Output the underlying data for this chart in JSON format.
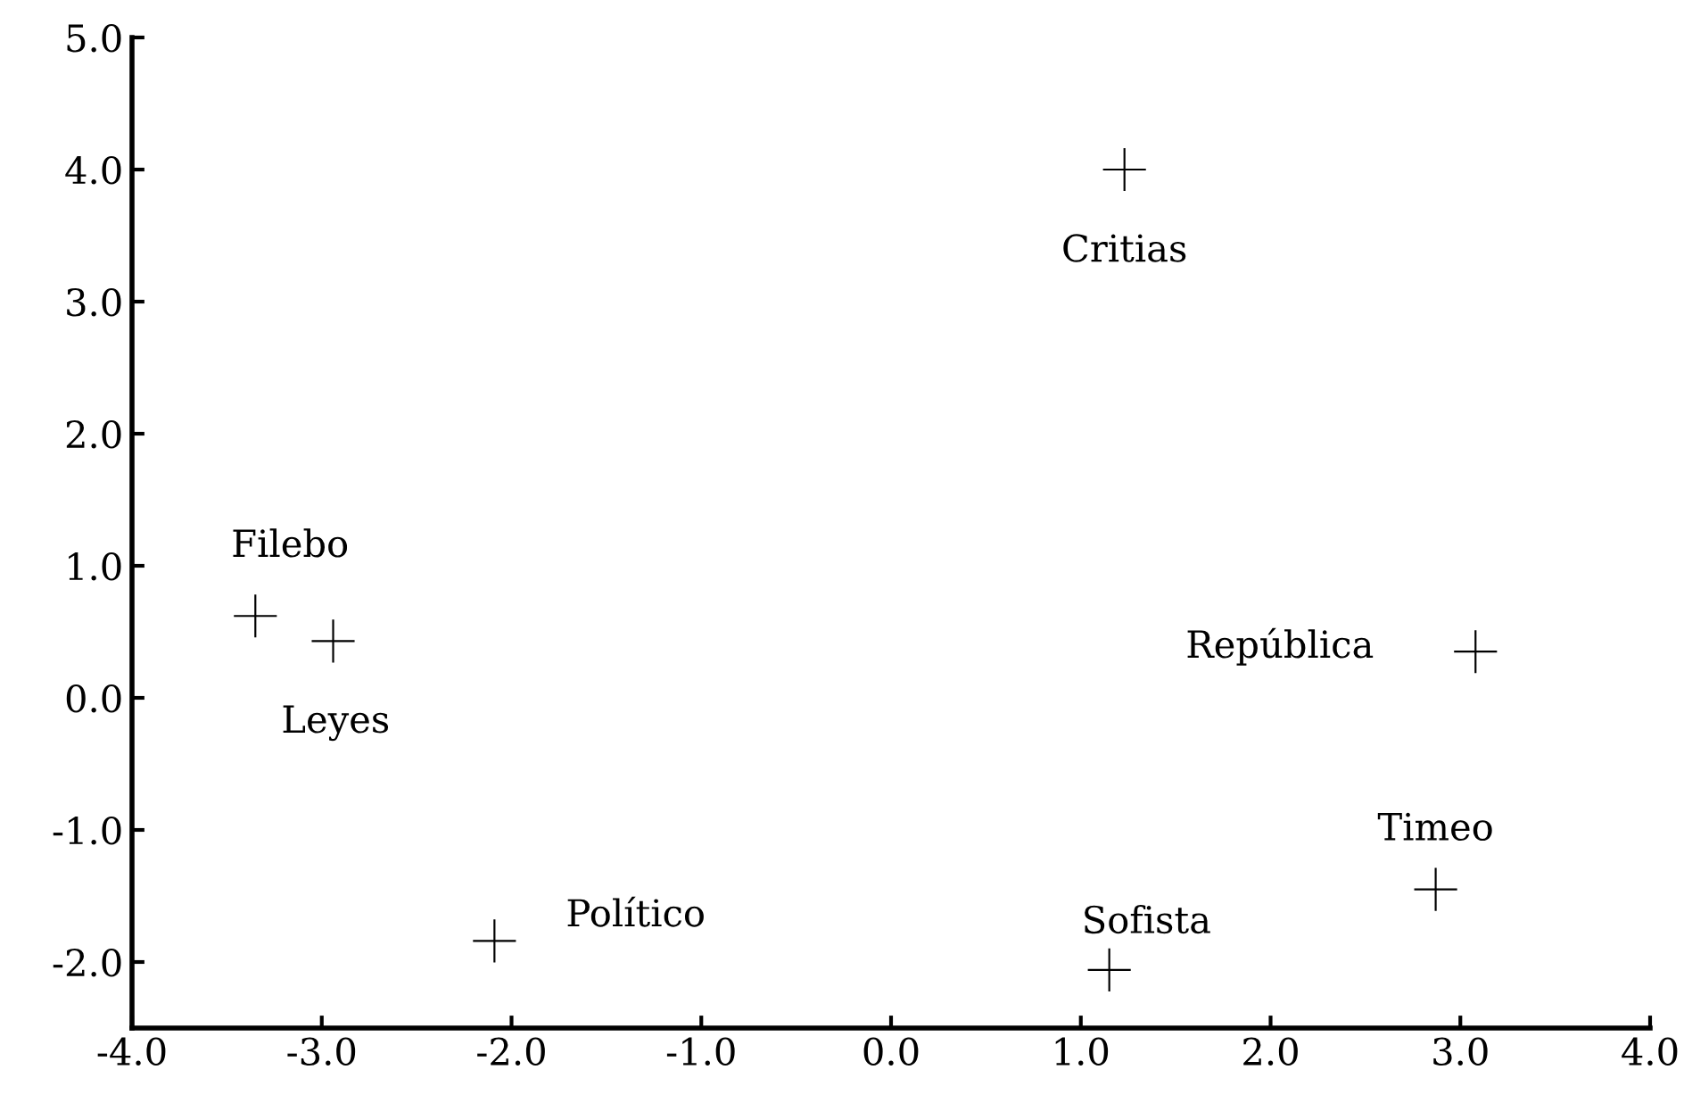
{
  "chart_data": {
    "type": "scatter",
    "marker": "cross",
    "grid": false,
    "legend": false,
    "series": [
      {
        "color": "#000000",
        "x": [
          1.23,
          -3.35,
          -2.94,
          3.08,
          2.87,
          1.15,
          -2.09
        ],
        "values": [
          4.0,
          0.62,
          0.43,
          0.35,
          -1.45,
          -2.06,
          -1.84
        ]
      }
    ],
    "annotations": [
      {
        "text": "Critias",
        "x": 1.23,
        "y": 4.0
      },
      {
        "text": "Filebo",
        "x": -3.35,
        "y": 0.62
      },
      {
        "text": "Leyes",
        "x": -2.94,
        "y": 0.43
      },
      {
        "text": "República",
        "x": 3.08,
        "y": 0.35
      },
      {
        "text": "Timeo",
        "x": 2.87,
        "y": -1.45
      },
      {
        "text": "Sofista",
        "x": 1.15,
        "y": -2.06
      },
      {
        "text": "Político",
        "x": -2.09,
        "y": -1.84
      }
    ],
    "xlim": [
      -4,
      4
    ],
    "ylim": [
      -2.5,
      5
    ],
    "xticks": [
      {
        "value": -4,
        "label": "-4.0"
      },
      {
        "value": -3,
        "label": "-3.0"
      },
      {
        "value": -2,
        "label": "-2.0"
      },
      {
        "value": -1,
        "label": "-1.0"
      },
      {
        "value": 0,
        "label": "0.0"
      },
      {
        "value": 1,
        "label": "1.0"
      },
      {
        "value": 2,
        "label": "2.0"
      },
      {
        "value": 3,
        "label": "3.0"
      },
      {
        "value": 4,
        "label": "4.0"
      }
    ],
    "yticks": [
      {
        "value": -2,
        "label": "-2.0"
      },
      {
        "value": -1,
        "label": "-1.0"
      },
      {
        "value": 0,
        "label": "0.0"
      },
      {
        "value": 1,
        "label": "1.0"
      },
      {
        "value": 2,
        "label": "2.0"
      },
      {
        "value": 3,
        "label": "3.0"
      },
      {
        "value": 4,
        "label": "4.0"
      },
      {
        "value": 5,
        "label": "5.0"
      }
    ]
  }
}
